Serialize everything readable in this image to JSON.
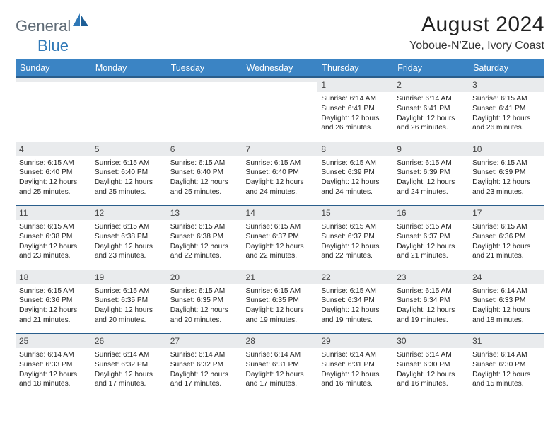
{
  "logo": {
    "part1": "General",
    "part2": "Blue"
  },
  "title": "August 2024",
  "subtitle": "Yoboue-N'Zue, Ivory Coast",
  "colors": {
    "header_bg": "#3b84c4",
    "header_border": "#2a5e8c",
    "daynum_bg": "#e9ebed",
    "logo_gray": "#5f6b76",
    "logo_blue": "#2f78b7"
  },
  "dayHeaders": [
    "Sunday",
    "Monday",
    "Tuesday",
    "Wednesday",
    "Thursday",
    "Friday",
    "Saturday"
  ],
  "weeks": [
    [
      {
        "num": "",
        "lines": []
      },
      {
        "num": "",
        "lines": []
      },
      {
        "num": "",
        "lines": []
      },
      {
        "num": "",
        "lines": []
      },
      {
        "num": "1",
        "lines": [
          "Sunrise: 6:14 AM",
          "Sunset: 6:41 PM",
          "Daylight: 12 hours",
          "and 26 minutes."
        ]
      },
      {
        "num": "2",
        "lines": [
          "Sunrise: 6:14 AM",
          "Sunset: 6:41 PM",
          "Daylight: 12 hours",
          "and 26 minutes."
        ]
      },
      {
        "num": "3",
        "lines": [
          "Sunrise: 6:15 AM",
          "Sunset: 6:41 PM",
          "Daylight: 12 hours",
          "and 26 minutes."
        ]
      }
    ],
    [
      {
        "num": "4",
        "lines": [
          "Sunrise: 6:15 AM",
          "Sunset: 6:40 PM",
          "Daylight: 12 hours",
          "and 25 minutes."
        ]
      },
      {
        "num": "5",
        "lines": [
          "Sunrise: 6:15 AM",
          "Sunset: 6:40 PM",
          "Daylight: 12 hours",
          "and 25 minutes."
        ]
      },
      {
        "num": "6",
        "lines": [
          "Sunrise: 6:15 AM",
          "Sunset: 6:40 PM",
          "Daylight: 12 hours",
          "and 25 minutes."
        ]
      },
      {
        "num": "7",
        "lines": [
          "Sunrise: 6:15 AM",
          "Sunset: 6:40 PM",
          "Daylight: 12 hours",
          "and 24 minutes."
        ]
      },
      {
        "num": "8",
        "lines": [
          "Sunrise: 6:15 AM",
          "Sunset: 6:39 PM",
          "Daylight: 12 hours",
          "and 24 minutes."
        ]
      },
      {
        "num": "9",
        "lines": [
          "Sunrise: 6:15 AM",
          "Sunset: 6:39 PM",
          "Daylight: 12 hours",
          "and 24 minutes."
        ]
      },
      {
        "num": "10",
        "lines": [
          "Sunrise: 6:15 AM",
          "Sunset: 6:39 PM",
          "Daylight: 12 hours",
          "and 23 minutes."
        ]
      }
    ],
    [
      {
        "num": "11",
        "lines": [
          "Sunrise: 6:15 AM",
          "Sunset: 6:38 PM",
          "Daylight: 12 hours",
          "and 23 minutes."
        ]
      },
      {
        "num": "12",
        "lines": [
          "Sunrise: 6:15 AM",
          "Sunset: 6:38 PM",
          "Daylight: 12 hours",
          "and 23 minutes."
        ]
      },
      {
        "num": "13",
        "lines": [
          "Sunrise: 6:15 AM",
          "Sunset: 6:38 PM",
          "Daylight: 12 hours",
          "and 22 minutes."
        ]
      },
      {
        "num": "14",
        "lines": [
          "Sunrise: 6:15 AM",
          "Sunset: 6:37 PM",
          "Daylight: 12 hours",
          "and 22 minutes."
        ]
      },
      {
        "num": "15",
        "lines": [
          "Sunrise: 6:15 AM",
          "Sunset: 6:37 PM",
          "Daylight: 12 hours",
          "and 22 minutes."
        ]
      },
      {
        "num": "16",
        "lines": [
          "Sunrise: 6:15 AM",
          "Sunset: 6:37 PM",
          "Daylight: 12 hours",
          "and 21 minutes."
        ]
      },
      {
        "num": "17",
        "lines": [
          "Sunrise: 6:15 AM",
          "Sunset: 6:36 PM",
          "Daylight: 12 hours",
          "and 21 minutes."
        ]
      }
    ],
    [
      {
        "num": "18",
        "lines": [
          "Sunrise: 6:15 AM",
          "Sunset: 6:36 PM",
          "Daylight: 12 hours",
          "and 21 minutes."
        ]
      },
      {
        "num": "19",
        "lines": [
          "Sunrise: 6:15 AM",
          "Sunset: 6:35 PM",
          "Daylight: 12 hours",
          "and 20 minutes."
        ]
      },
      {
        "num": "20",
        "lines": [
          "Sunrise: 6:15 AM",
          "Sunset: 6:35 PM",
          "Daylight: 12 hours",
          "and 20 minutes."
        ]
      },
      {
        "num": "21",
        "lines": [
          "Sunrise: 6:15 AM",
          "Sunset: 6:35 PM",
          "Daylight: 12 hours",
          "and 19 minutes."
        ]
      },
      {
        "num": "22",
        "lines": [
          "Sunrise: 6:15 AM",
          "Sunset: 6:34 PM",
          "Daylight: 12 hours",
          "and 19 minutes."
        ]
      },
      {
        "num": "23",
        "lines": [
          "Sunrise: 6:15 AM",
          "Sunset: 6:34 PM",
          "Daylight: 12 hours",
          "and 19 minutes."
        ]
      },
      {
        "num": "24",
        "lines": [
          "Sunrise: 6:14 AM",
          "Sunset: 6:33 PM",
          "Daylight: 12 hours",
          "and 18 minutes."
        ]
      }
    ],
    [
      {
        "num": "25",
        "lines": [
          "Sunrise: 6:14 AM",
          "Sunset: 6:33 PM",
          "Daylight: 12 hours",
          "and 18 minutes."
        ]
      },
      {
        "num": "26",
        "lines": [
          "Sunrise: 6:14 AM",
          "Sunset: 6:32 PM",
          "Daylight: 12 hours",
          "and 17 minutes."
        ]
      },
      {
        "num": "27",
        "lines": [
          "Sunrise: 6:14 AM",
          "Sunset: 6:32 PM",
          "Daylight: 12 hours",
          "and 17 minutes."
        ]
      },
      {
        "num": "28",
        "lines": [
          "Sunrise: 6:14 AM",
          "Sunset: 6:31 PM",
          "Daylight: 12 hours",
          "and 17 minutes."
        ]
      },
      {
        "num": "29",
        "lines": [
          "Sunrise: 6:14 AM",
          "Sunset: 6:31 PM",
          "Daylight: 12 hours",
          "and 16 minutes."
        ]
      },
      {
        "num": "30",
        "lines": [
          "Sunrise: 6:14 AM",
          "Sunset: 6:30 PM",
          "Daylight: 12 hours",
          "and 16 minutes."
        ]
      },
      {
        "num": "31",
        "lines": [
          "Sunrise: 6:14 AM",
          "Sunset: 6:30 PM",
          "Daylight: 12 hours",
          "and 15 minutes."
        ]
      }
    ]
  ]
}
